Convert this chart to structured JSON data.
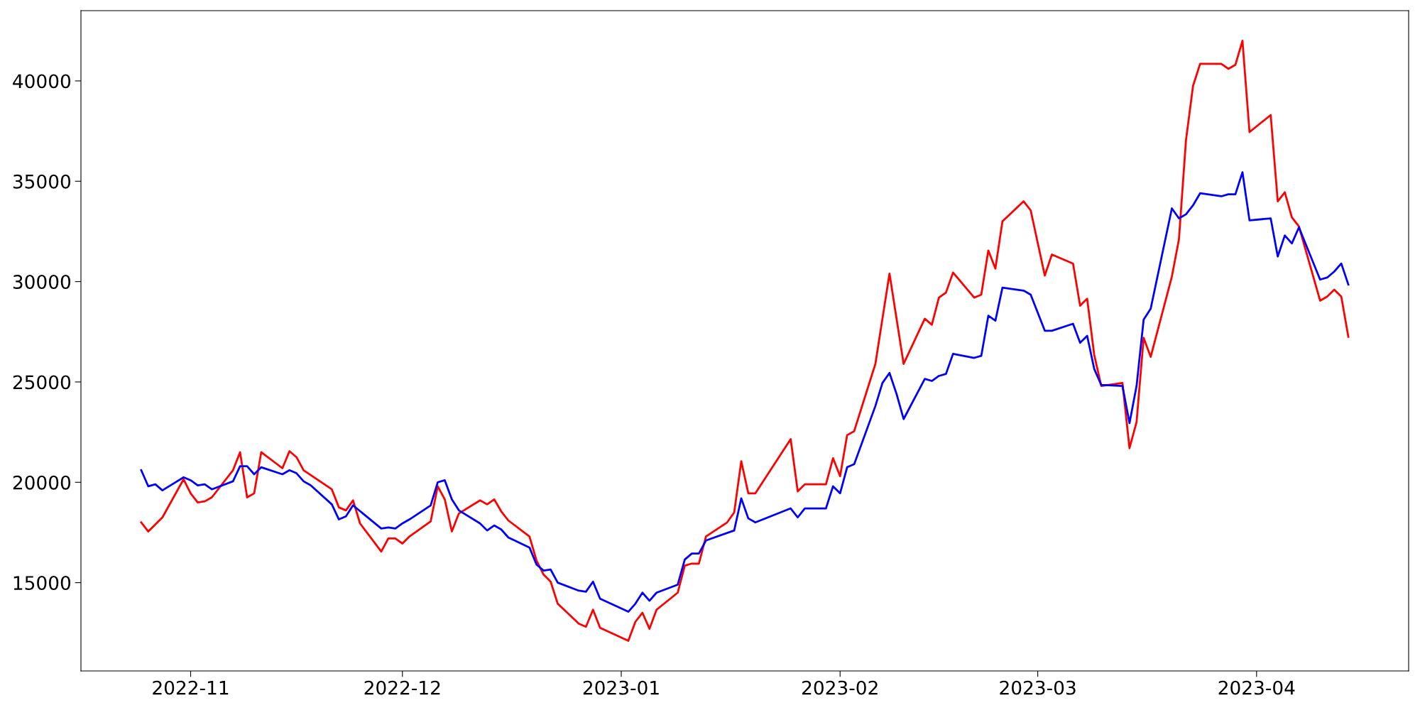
{
  "chart_data": {
    "type": "line",
    "xlim": [
      "2022-10-16T11:00",
      "2023-04-22T13:00"
    ],
    "xticks": [
      {
        "value": "2022-11-01",
        "label": "2022-11"
      },
      {
        "value": "2022-12-01",
        "label": "2022-12"
      },
      {
        "value": "2023-01-01",
        "label": "2023-01"
      },
      {
        "value": "2023-02-01",
        "label": "2023-02"
      },
      {
        "value": "2023-03-01",
        "label": "2023-03"
      },
      {
        "value": "2023-04-01",
        "label": "2023-04"
      }
    ],
    "ylim": [
      10600,
      43500
    ],
    "yticks": [
      15000,
      20000,
      25000,
      30000,
      35000,
      40000
    ],
    "grid": false,
    "line_style": "solid",
    "series": [
      {
        "color": "#ff0000",
        "x": [
          "2022-10-25",
          "2022-10-26",
          "2022-10-28",
          "2022-10-31",
          "2022-11-01",
          "2022-11-02",
          "2022-11-03",
          "2022-11-04",
          "2022-11-07",
          "2022-11-08",
          "2022-11-09",
          "2022-11-10",
          "2022-11-11",
          "2022-11-14",
          "2022-11-15",
          "2022-11-16",
          "2022-11-17",
          "2022-11-21",
          "2022-11-22",
          "2022-11-23",
          "2022-11-24",
          "2022-11-25",
          "2022-11-28",
          "2022-11-29",
          "2022-11-30",
          "2022-12-01",
          "2022-12-02",
          "2022-12-05",
          "2022-12-06",
          "2022-12-07",
          "2022-12-08",
          "2022-12-09",
          "2022-12-12",
          "2022-12-13",
          "2022-12-14",
          "2022-12-15",
          "2022-12-16",
          "2022-12-19",
          "2022-12-20",
          "2022-12-21",
          "2022-12-22",
          "2022-12-23",
          "2022-12-26",
          "2022-12-27",
          "2022-12-28",
          "2022-12-29",
          "2023-01-02",
          "2023-01-03",
          "2023-01-04",
          "2023-01-05",
          "2023-01-06",
          "2023-01-09",
          "2023-01-10",
          "2023-01-11",
          "2023-01-12",
          "2023-01-13",
          "2023-01-16",
          "2023-01-17",
          "2023-01-18",
          "2023-01-19",
          "2023-01-20",
          "2023-01-25",
          "2023-01-26",
          "2023-01-27",
          "2023-01-30",
          "2023-01-31",
          "2023-02-01",
          "2023-02-02",
          "2023-02-03",
          "2023-02-06",
          "2023-02-08",
          "2023-02-10",
          "2023-02-13",
          "2023-02-14",
          "2023-02-15",
          "2023-02-16",
          "2023-02-17",
          "2023-02-20",
          "2023-02-21",
          "2023-02-22",
          "2023-02-23",
          "2023-02-24",
          "2023-02-27",
          "2023-02-28",
          "2023-03-02",
          "2023-03-03",
          "2023-03-06",
          "2023-03-07",
          "2023-03-08",
          "2023-03-09",
          "2023-03-10",
          "2023-03-13",
          "2023-03-14",
          "2023-03-15",
          "2023-03-16",
          "2023-03-17",
          "2023-03-20",
          "2023-03-21",
          "2023-03-22",
          "2023-03-23",
          "2023-03-24",
          "2023-03-27",
          "2023-03-28",
          "2023-03-29",
          "2023-03-30",
          "2023-03-31",
          "2023-04-03",
          "2023-04-04",
          "2023-04-05",
          "2023-04-06",
          "2023-04-07",
          "2023-04-10",
          "2023-04-11",
          "2023-04-12",
          "2023-04-13",
          "2023-04-14"
        ],
        "values": [
          18000,
          17550,
          18250,
          20150,
          19450,
          19000,
          19050,
          19250,
          20600,
          21500,
          19250,
          19450,
          21500,
          20700,
          21550,
          21250,
          20600,
          19650,
          18750,
          18600,
          19100,
          17950,
          16550,
          17200,
          17200,
          16950,
          17300,
          18050,
          19800,
          19150,
          17550,
          18450,
          19100,
          18900,
          19150,
          18550,
          18100,
          17300,
          16100,
          15400,
          15050,
          13950,
          12950,
          12800,
          13650,
          12750,
          12100,
          13050,
          13500,
          12700,
          13650,
          14500,
          15850,
          15950,
          15950,
          17300,
          18000,
          18500,
          21050,
          19450,
          19450,
          22150,
          19550,
          19900,
          19900,
          21200,
          20300,
          22350,
          22550,
          25900,
          30400,
          25900,
          28150,
          27850,
          29200,
          29450,
          30450,
          29200,
          29350,
          31550,
          30650,
          33000,
          34000,
          33550,
          30300,
          31350,
          30900,
          28800,
          29150,
          26350,
          24800,
          24950,
          21700,
          23000,
          27200,
          26250,
          30250,
          32100,
          37050,
          39750,
          40850,
          40850,
          40600,
          40800,
          42000,
          37450,
          38300,
          34000,
          34450,
          33200,
          32750,
          29050,
          29250,
          29600,
          29250,
          27250
        ]
      },
      {
        "color": "#0000ff",
        "x": [
          "2022-10-25",
          "2022-10-26",
          "2022-10-27",
          "2022-10-28",
          "2022-10-31",
          "2022-11-01",
          "2022-11-02",
          "2022-11-03",
          "2022-11-04",
          "2022-11-07",
          "2022-11-08",
          "2022-11-09",
          "2022-11-10",
          "2022-11-11",
          "2022-11-14",
          "2022-11-15",
          "2022-11-16",
          "2022-11-17",
          "2022-11-18",
          "2022-11-21",
          "2022-11-22",
          "2022-11-23",
          "2022-11-24",
          "2022-11-28",
          "2022-11-29",
          "2022-11-30",
          "2022-12-01",
          "2022-12-02",
          "2022-12-05",
          "2022-12-06",
          "2022-12-07",
          "2022-12-08",
          "2022-12-09",
          "2022-12-12",
          "2022-12-13",
          "2022-12-14",
          "2022-12-15",
          "2022-12-16",
          "2022-12-19",
          "2022-12-20",
          "2022-12-21",
          "2022-12-22",
          "2022-12-23",
          "2022-12-26",
          "2022-12-27",
          "2022-12-28",
          "2022-12-29",
          "2023-01-02",
          "2023-01-03",
          "2023-01-04",
          "2023-01-05",
          "2023-01-06",
          "2023-01-09",
          "2023-01-10",
          "2023-01-11",
          "2023-01-12",
          "2023-01-13",
          "2023-01-17",
          "2023-01-18",
          "2023-01-19",
          "2023-01-20",
          "2023-01-25",
          "2023-01-26",
          "2023-01-27",
          "2023-01-30",
          "2023-01-31",
          "2023-02-01",
          "2023-02-02",
          "2023-02-03",
          "2023-02-06",
          "2023-02-07",
          "2023-02-08",
          "2023-02-09",
          "2023-02-10",
          "2023-02-13",
          "2023-02-14",
          "2023-02-15",
          "2023-02-16",
          "2023-02-17",
          "2023-02-20",
          "2023-02-21",
          "2023-02-22",
          "2023-02-23",
          "2023-02-24",
          "2023-02-27",
          "2023-02-28",
          "2023-03-02",
          "2023-03-03",
          "2023-03-06",
          "2023-03-07",
          "2023-03-08",
          "2023-03-09",
          "2023-03-10",
          "2023-03-13",
          "2023-03-14",
          "2023-03-15",
          "2023-03-16",
          "2023-03-17",
          "2023-03-20",
          "2023-03-21",
          "2023-03-22",
          "2023-03-23",
          "2023-03-24",
          "2023-03-27",
          "2023-03-28",
          "2023-03-29",
          "2023-03-30",
          "2023-03-31",
          "2023-04-03",
          "2023-04-04",
          "2023-04-05",
          "2023-04-06",
          "2023-04-07",
          "2023-04-10",
          "2023-04-11",
          "2023-04-12",
          "2023-04-13",
          "2023-04-14"
        ],
        "values": [
          20600,
          19800,
          19900,
          19600,
          20250,
          20100,
          19850,
          19900,
          19650,
          20050,
          20800,
          20800,
          20400,
          20750,
          20400,
          20600,
          20450,
          20050,
          19850,
          18900,
          18150,
          18300,
          18850,
          17700,
          17750,
          17700,
          17950,
          18150,
          18850,
          20000,
          20100,
          19150,
          18600,
          17950,
          17600,
          17850,
          17650,
          17250,
          16750,
          15900,
          15600,
          15650,
          15000,
          14600,
          14550,
          15050,
          14200,
          13550,
          13950,
          14500,
          14100,
          14500,
          14900,
          16150,
          16450,
          16450,
          17100,
          17600,
          19200,
          18200,
          18000,
          18700,
          18250,
          18700,
          18700,
          19800,
          19450,
          20750,
          20900,
          23800,
          24950,
          25450,
          24400,
          23150,
          25150,
          25050,
          25300,
          25400,
          26400,
          26200,
          26300,
          28300,
          28050,
          29700,
          29550,
          29350,
          27550,
          27550,
          27900,
          26950,
          27300,
          25650,
          24850,
          24800,
          22950,
          24800,
          28100,
          28650,
          33650,
          33150,
          33350,
          33800,
          34400,
          34250,
          34350,
          34350,
          35450,
          33050,
          33150,
          31250,
          32300,
          31900,
          32700,
          30100,
          30200,
          30500,
          30900,
          29850
        ]
      }
    ]
  }
}
